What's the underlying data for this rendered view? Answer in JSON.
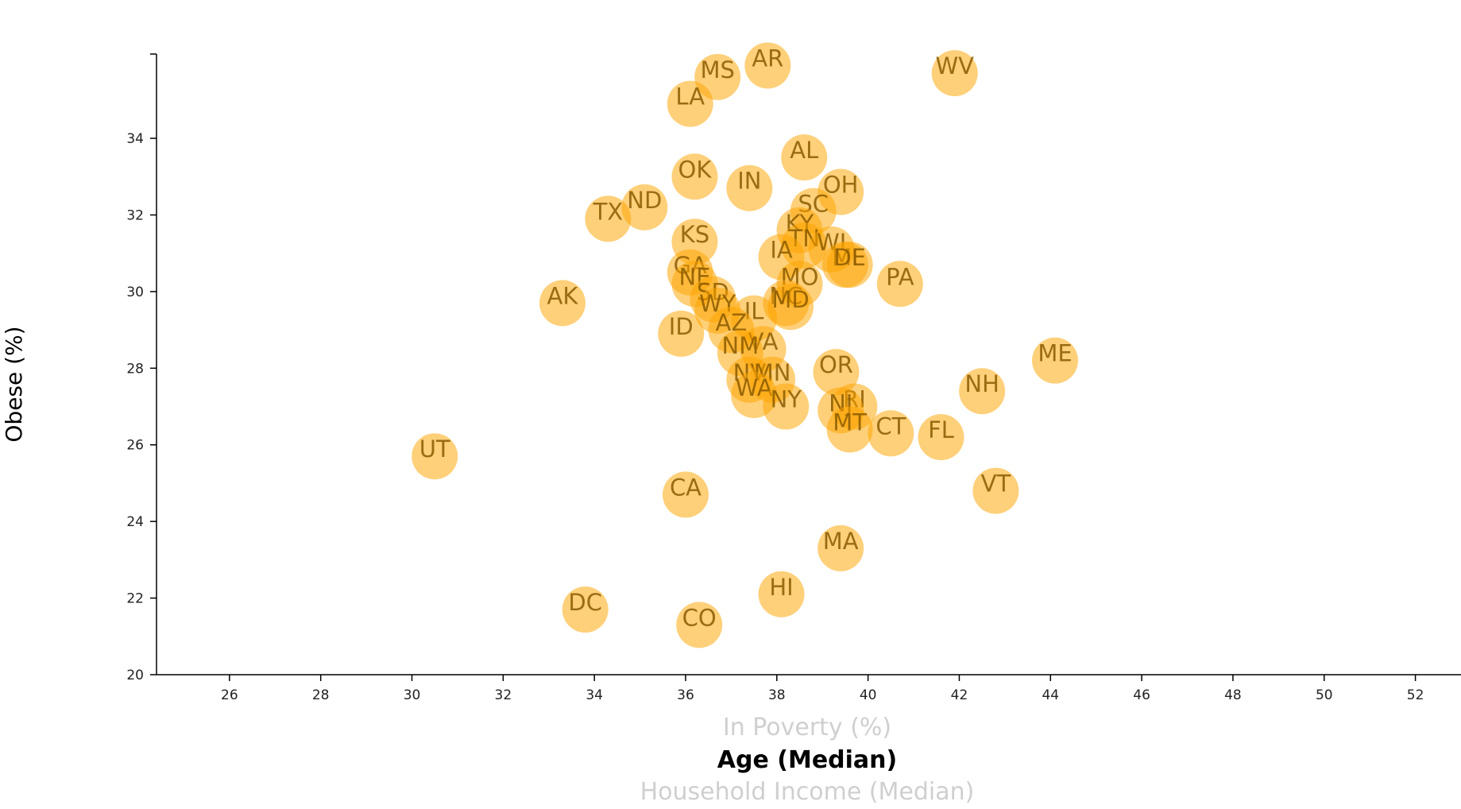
{
  "axes": {
    "x_options": [
      {
        "label": "In Poverty (%)",
        "active": false
      },
      {
        "label": "Age (Median)",
        "active": true
      },
      {
        "label": "Household Income (Median)",
        "active": false
      }
    ],
    "y_label": "Obese (%)"
  },
  "chart_data": {
    "type": "scatter",
    "title": "",
    "xlabel": "Age (Median)",
    "ylabel": "Obese (%)",
    "xlim": [
      24.4,
      53
    ],
    "ylim": [
      20,
      36.2
    ],
    "xticks": [
      26,
      28,
      30,
      32,
      34,
      36,
      38,
      40,
      42,
      44,
      46,
      48,
      50,
      52
    ],
    "yticks": [
      20,
      22,
      24,
      26,
      28,
      30,
      32,
      34
    ],
    "grid": false,
    "legend": "none",
    "marker_color": "#ffa500",
    "points": [
      {
        "abbr": "AR",
        "x": 37.8,
        "y": 35.9
      },
      {
        "abbr": "MS",
        "x": 36.7,
        "y": 35.6
      },
      {
        "abbr": "WV",
        "x": 41.9,
        "y": 35.7
      },
      {
        "abbr": "LA",
        "x": 36.1,
        "y": 34.9
      },
      {
        "abbr": "AL",
        "x": 38.6,
        "y": 33.5
      },
      {
        "abbr": "OK",
        "x": 36.2,
        "y": 33.0
      },
      {
        "abbr": "IN",
        "x": 37.4,
        "y": 32.7
      },
      {
        "abbr": "OH",
        "x": 39.4,
        "y": 32.6
      },
      {
        "abbr": "ND",
        "x": 35.1,
        "y": 32.2
      },
      {
        "abbr": "TX",
        "x": 34.3,
        "y": 31.9
      },
      {
        "abbr": "SC",
        "x": 38.8,
        "y": 32.1
      },
      {
        "abbr": "KY",
        "x": 38.5,
        "y": 31.6
      },
      {
        "abbr": "KS",
        "x": 36.2,
        "y": 31.3
      },
      {
        "abbr": "TN",
        "x": 38.6,
        "y": 31.2
      },
      {
        "abbr": "WI",
        "x": 39.2,
        "y": 31.1
      },
      {
        "abbr": "IA",
        "x": 38.1,
        "y": 30.9
      },
      {
        "abbr": "MI",
        "x": 39.5,
        "y": 30.7
      },
      {
        "abbr": "DE",
        "x": 39.6,
        "y": 30.7
      },
      {
        "abbr": "GA",
        "x": 36.1,
        "y": 30.5
      },
      {
        "abbr": "NE",
        "x": 36.2,
        "y": 30.2
      },
      {
        "abbr": "MO",
        "x": 38.5,
        "y": 30.2
      },
      {
        "abbr": "PA",
        "x": 40.7,
        "y": 30.2
      },
      {
        "abbr": "SD",
        "x": 36.6,
        "y": 29.8
      },
      {
        "abbr": "AK",
        "x": 33.3,
        "y": 29.7
      },
      {
        "abbr": "NC",
        "x": 38.2,
        "y": 29.7
      },
      {
        "abbr": "MD",
        "x": 38.3,
        "y": 29.6
      },
      {
        "abbr": "WY",
        "x": 36.7,
        "y": 29.5
      },
      {
        "abbr": "IL",
        "x": 37.5,
        "y": 29.3
      },
      {
        "abbr": "AZ",
        "x": 37.0,
        "y": 29.0
      },
      {
        "abbr": "ID",
        "x": 35.9,
        "y": 28.9
      },
      {
        "abbr": "VA",
        "x": 37.7,
        "y": 28.5
      },
      {
        "abbr": "NM",
        "x": 37.2,
        "y": 28.4
      },
      {
        "abbr": "ME",
        "x": 44.1,
        "y": 28.2
      },
      {
        "abbr": "OR",
        "x": 39.3,
        "y": 27.9
      },
      {
        "abbr": "NV",
        "x": 37.4,
        "y": 27.7
      },
      {
        "abbr": "MN",
        "x": 37.9,
        "y": 27.7
      },
      {
        "abbr": "NH",
        "x": 42.5,
        "y": 27.4
      },
      {
        "abbr": "WA",
        "x": 37.5,
        "y": 27.3
      },
      {
        "abbr": "RI",
        "x": 39.7,
        "y": 27.0
      },
      {
        "abbr": "NY",
        "x": 38.2,
        "y": 27.0
      },
      {
        "abbr": "NJ",
        "x": 39.4,
        "y": 26.9
      },
      {
        "abbr": "MT",
        "x": 39.6,
        "y": 26.4
      },
      {
        "abbr": "CT",
        "x": 40.5,
        "y": 26.3
      },
      {
        "abbr": "FL",
        "x": 41.6,
        "y": 26.2
      },
      {
        "abbr": "UT",
        "x": 30.5,
        "y": 25.7
      },
      {
        "abbr": "VT",
        "x": 42.8,
        "y": 24.8
      },
      {
        "abbr": "CA",
        "x": 36.0,
        "y": 24.7
      },
      {
        "abbr": "MA",
        "x": 39.4,
        "y": 23.3
      },
      {
        "abbr": "HI",
        "x": 38.1,
        "y": 22.1
      },
      {
        "abbr": "DC",
        "x": 33.8,
        "y": 21.7
      },
      {
        "abbr": "CO",
        "x": 36.3,
        "y": 21.3
      }
    ]
  }
}
